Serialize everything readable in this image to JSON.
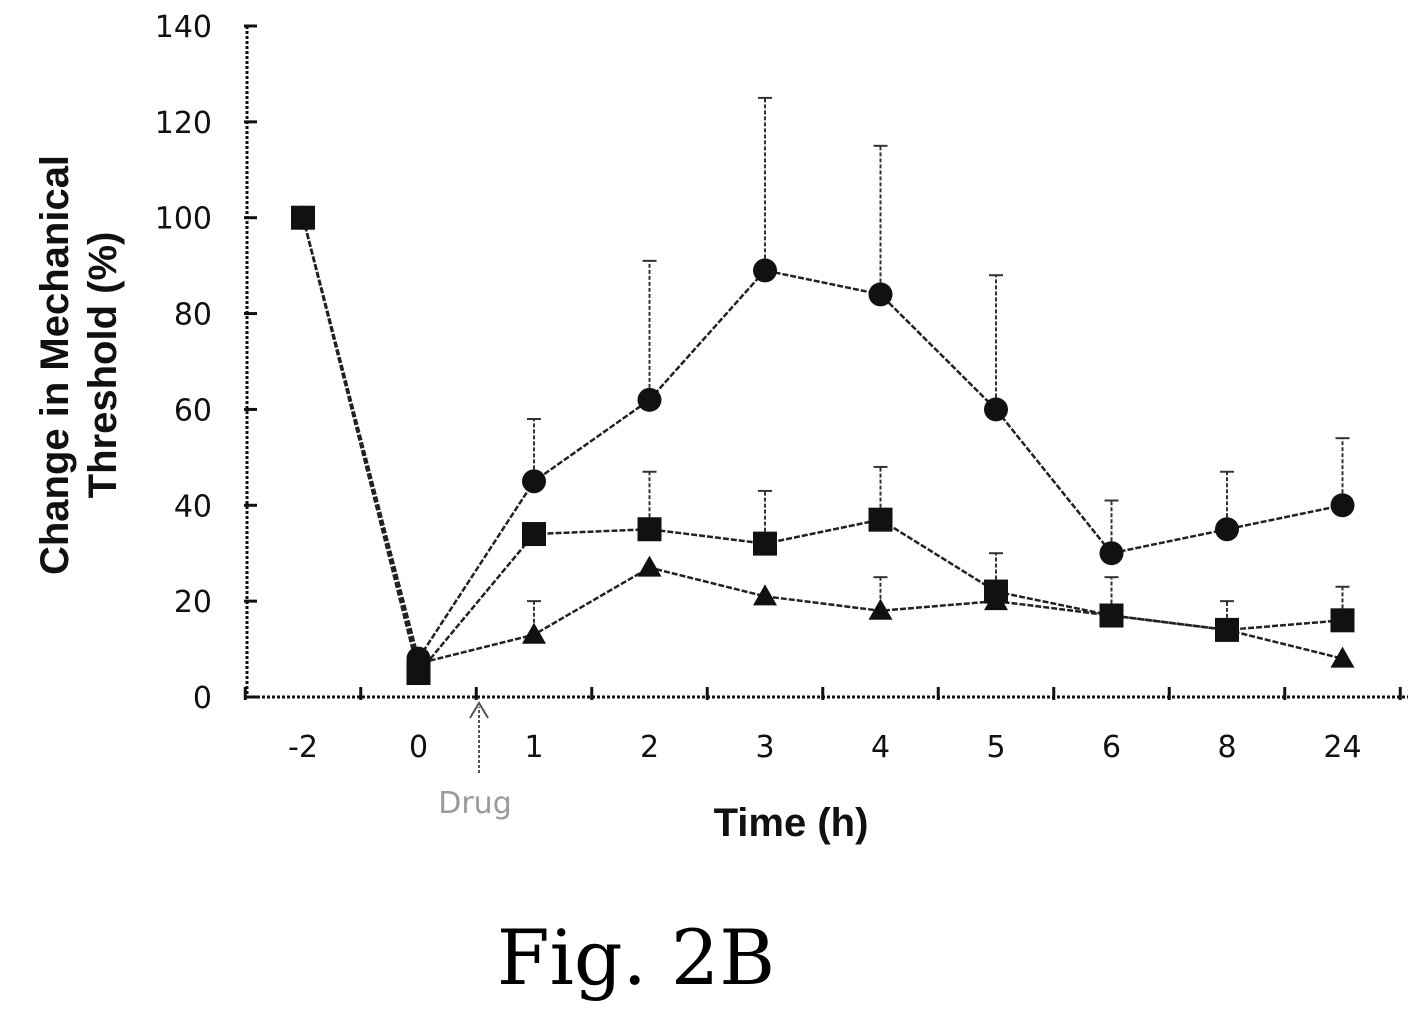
{
  "chart_data": {
    "type": "line",
    "title": "",
    "xlabel": "Time (h)",
    "ylabel": "Change in Mechanical Threshold (%)",
    "ylabel_lines": [
      "Change in Mechanical",
      "Threshold (%)"
    ],
    "categories": [
      "-2",
      "0",
      "1",
      "2",
      "3",
      "4",
      "5",
      "6",
      "8",
      "24"
    ],
    "yticks": [
      "0",
      "20",
      "40",
      "60",
      "80",
      "100",
      "120",
      "140"
    ],
    "ylim": [
      0,
      140
    ],
    "grid": false,
    "legend": "none",
    "series": [
      {
        "marker": "circle",
        "values": [
          100,
          8,
          45,
          62,
          89,
          84,
          60,
          30,
          35,
          40
        ],
        "errors": [
          0,
          0,
          13,
          29,
          36,
          31,
          28,
          11,
          12,
          14
        ]
      },
      {
        "marker": "square",
        "values": [
          100,
          5,
          34,
          35,
          32,
          37,
          22,
          17,
          14,
          16
        ],
        "errors": [
          0,
          0,
          0,
          12,
          11,
          11,
          8,
          8,
          6,
          7
        ]
      },
      {
        "marker": "triangle",
        "values": [
          100,
          7,
          13,
          27,
          21,
          18,
          20,
          17,
          14,
          8
        ],
        "errors": [
          0,
          0,
          7,
          0,
          0,
          7,
          0,
          0,
          0,
          0
        ]
      }
    ],
    "annotations": [
      {
        "text": "Drug",
        "between": [
          "0",
          "1"
        ]
      }
    ]
  },
  "caption": "Fig. 2B"
}
